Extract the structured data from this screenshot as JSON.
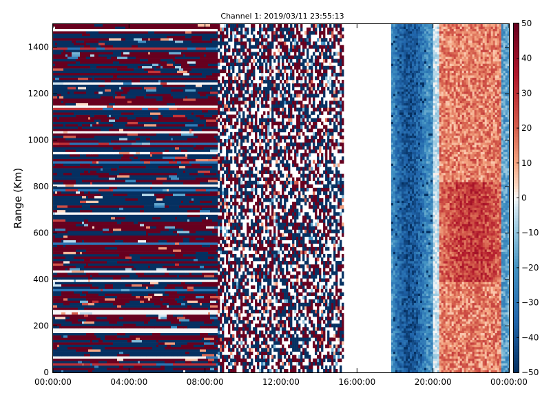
{
  "chart_data": {
    "type": "heatmap",
    "title": "Channel 1: 2019/03/11 23:55:13",
    "xlabel": "",
    "ylabel": "Range (Km)",
    "x_ticks": [
      "00:00:00",
      "04:00:00",
      "08:00:00",
      "12:00:00",
      "16:00:00",
      "20:00:00",
      "00:00:00"
    ],
    "y_ticks": [
      0,
      200,
      400,
      600,
      800,
      1000,
      1200,
      1400
    ],
    "ylim": [
      0,
      1500
    ],
    "colorbar": {
      "ticks": [
        50,
        40,
        30,
        20,
        10,
        0,
        -10,
        -20,
        -30,
        -40,
        -50
      ],
      "range": [
        -50,
        50
      ],
      "colormap": "RdBu_r"
    },
    "segments": [
      {
        "start_hour": 0.0,
        "end_hour": 8.67,
        "pattern": "strong banded noise, values mostly saturated near +50 and -50"
      },
      {
        "start_hour": 8.67,
        "end_hour": 15.2,
        "pattern": "sparse speckled noise, mixed +/-50 with many near-zero cells"
      },
      {
        "start_hour": 15.2,
        "end_hour": 17.8,
        "pattern": "no data"
      },
      {
        "start_hour": 17.8,
        "end_hour": 20.0,
        "pattern": "negative values roughly -20 to -50"
      },
      {
        "start_hour": 20.0,
        "end_hour": 24.0,
        "pattern": "positive values roughly +10 to +40, strongest near 400-800 km"
      }
    ],
    "grid": false,
    "colors": {
      "high": "#67001f",
      "zero": "#f7f7f7",
      "low": "#053061"
    }
  }
}
